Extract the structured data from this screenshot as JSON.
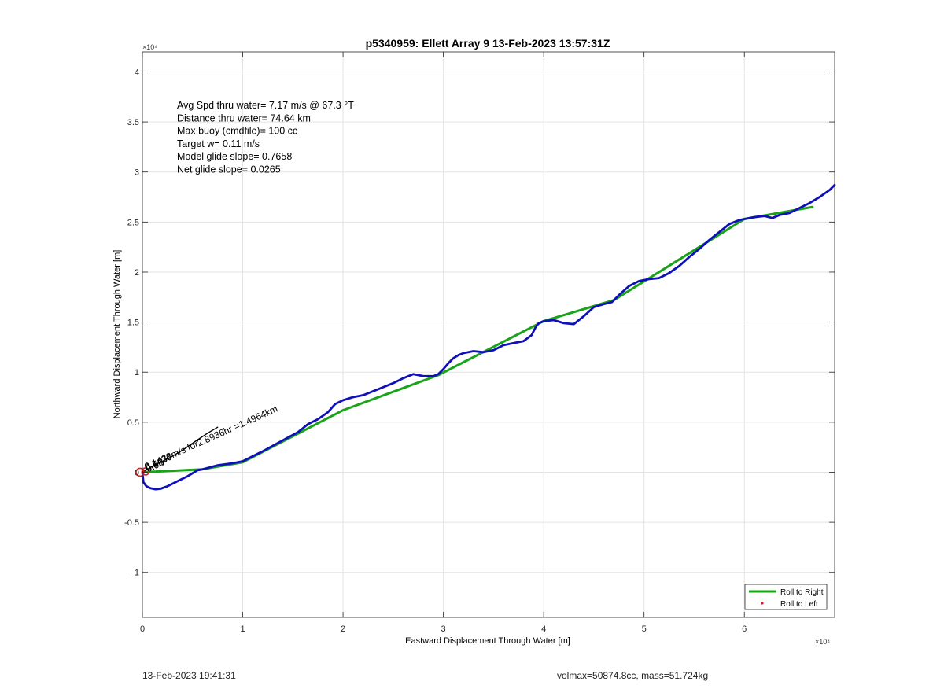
{
  "chart_data": {
    "type": "line",
    "title": "p5340959: Ellett Array 9 13-Feb-2023 13:57:31Z",
    "xlabel": "Eastward Displacement Through Water [m]",
    "ylabel": "Northward Displacement Through Water [m]",
    "xlim": [
      0,
      69000
    ],
    "ylim": [
      -14500,
      42000
    ],
    "x_ticks": [
      0,
      10000,
      20000,
      30000,
      40000,
      50000,
      60000
    ],
    "x_tick_labels": [
      "0",
      "1",
      "2",
      "3",
      "4",
      "5",
      "6"
    ],
    "y_ticks": [
      -10000,
      -5000,
      0,
      5000,
      10000,
      15000,
      20000,
      25000,
      30000,
      35000,
      40000
    ],
    "y_tick_labels": [
      "-1",
      "-0.5",
      "0",
      "0.5",
      "1",
      "1.5",
      "2",
      "2.5",
      "3",
      "3.5",
      "4"
    ],
    "x_exponent": "×10⁴",
    "y_exponent": "×10⁴",
    "grid": true,
    "stats_text": [
      "Avg Spd thru water=  7.17 m/s @  67.3 °T",
      "Distance thru water= 74.64 km",
      "Max buoy (cmdfile)= 100 cc",
      "Target w= 0.11 m/s",
      "Model glide slope= 0.7658",
      "Net glide slope= 0.0265"
    ],
    "annotation": "0.1438m/s for2.8936hr =1.4964km",
    "annotation_overlaps": [
      "0.1436",
      "0.5B",
      "0.95"
    ],
    "legend": {
      "placement": "bottom-right",
      "entries": [
        {
          "label": "Roll to Right",
          "color": "#1aa31a",
          "marker": "line"
        },
        {
          "label": "Roll to Left",
          "color": "#e01818",
          "marker": "dot"
        }
      ]
    },
    "series": [
      {
        "color": "#1aa31a",
        "x": [
          0,
          6000,
          10000,
          20000,
          29500,
          40000,
          47000,
          60000,
          66800
        ],
        "y": [
          0,
          300,
          1000,
          6200,
          9700,
          15100,
          17200,
          25300,
          26500
        ]
      },
      {
        "color": "#1010b8",
        "x": [
          0,
          100,
          400,
          800,
          1300,
          1800,
          2500,
          3500,
          4500,
          5500,
          6000,
          7500,
          9000,
          10000,
          12000,
          14000,
          15500,
          16500,
          17500,
          18500,
          19200,
          20000,
          21000,
          22000,
          23000,
          24000,
          25000,
          26000,
          27000,
          27500,
          28000,
          29000,
          29500,
          30000,
          30500,
          31000,
          31500,
          32000,
          33000,
          34000,
          35000,
          36000,
          37000,
          38000,
          38800,
          39200,
          39500,
          40000,
          41000,
          42000,
          43000,
          44000,
          45000,
          46000,
          46800,
          47500,
          48500,
          49500,
          50500,
          51500,
          52500,
          53500,
          54500,
          55500,
          56500,
          57500,
          58500,
          59500,
          60000,
          61000,
          62000,
          62800,
          63500,
          64500,
          65500,
          66500,
          67500,
          68500,
          69000
        ],
        "y": [
          0,
          -1000,
          -1400,
          -1600,
          -1700,
          -1650,
          -1400,
          -900,
          -400,
          200,
          300,
          700,
          900,
          1100,
          2100,
          3200,
          4000,
          4800,
          5300,
          6000,
          6800,
          7200,
          7500,
          7700,
          8100,
          8500,
          8900,
          9400,
          9800,
          9700,
          9600,
          9600,
          9800,
          10300,
          10900,
          11400,
          11700,
          11900,
          12100,
          12000,
          12200,
          12700,
          12900,
          13100,
          13700,
          14500,
          14900,
          15100,
          15200,
          14900,
          14800,
          15600,
          16500,
          16800,
          17000,
          17700,
          18600,
          19100,
          19300,
          19400,
          19900,
          20600,
          21500,
          22300,
          23200,
          24000,
          24800,
          25200,
          25300,
          25500,
          25600,
          25400,
          25700,
          25900,
          26400,
          26900,
          27500,
          28200,
          28700
        ]
      },
      {
        "color": "#000000",
        "x": [
          0,
          500,
          1000,
          1800,
          2800,
          4000,
          5300,
          6500,
          7500
        ],
        "y": [
          0,
          300,
          600,
          1000,
          1500,
          2200,
          3100,
          3900,
          4500
        ]
      }
    ]
  },
  "footer": {
    "left": "13-Feb-2023 19:41:31",
    "right": "volmax=50874.8cc, mass=51.724kg"
  }
}
